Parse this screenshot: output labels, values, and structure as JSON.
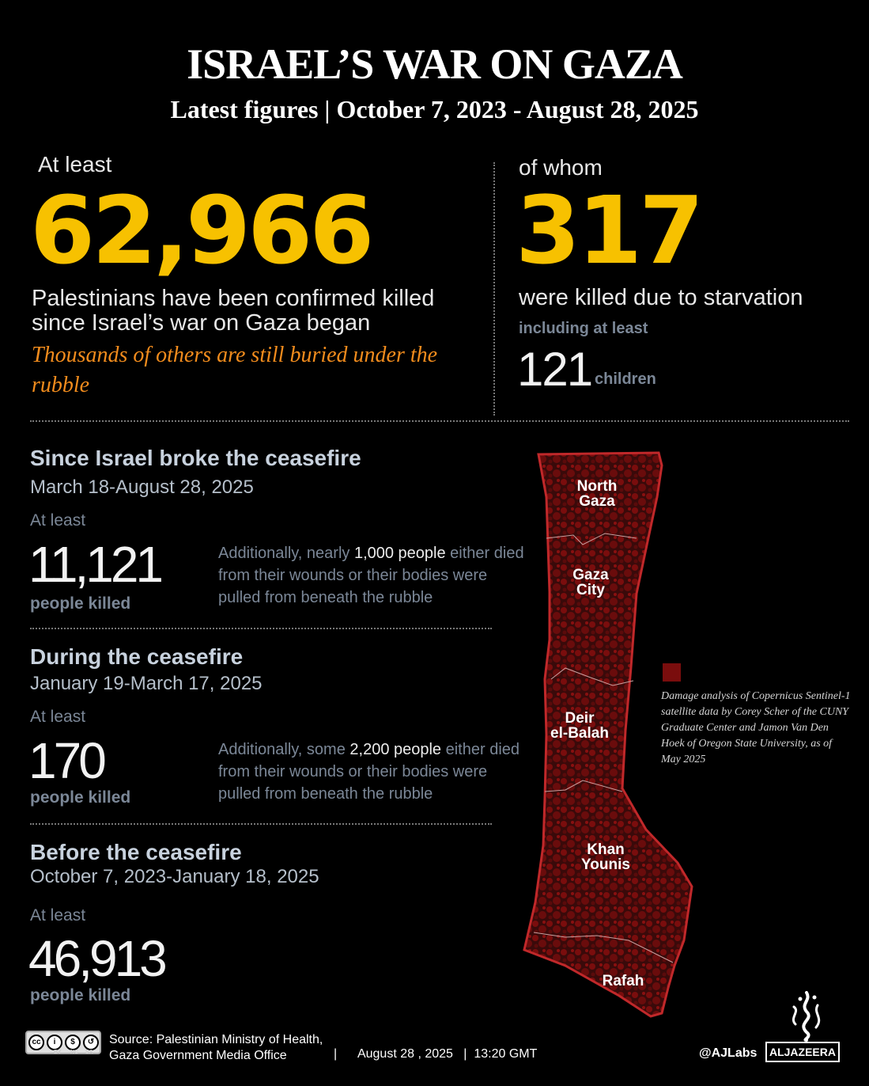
{
  "header": {
    "title": "ISRAEL’S WAR ON GAZA",
    "subtitle": "Latest figures | October 7, 2023 - August 28, 2025"
  },
  "total": {
    "prefix": "At least",
    "count": "62,966",
    "line1": "Palestinians have been confirmed killed",
    "line2": "since Israel’s war on Gaza began",
    "note": "Thousands of others are still buried under the rubble"
  },
  "starvation": {
    "prefix": "of whom",
    "count": "317",
    "text": "were killed due to starvation",
    "including": "including at least",
    "children_count": "121",
    "children_label": "children"
  },
  "sections": [
    {
      "title": "Since Israel broke the ceasefire",
      "dates": "March 18-August 28, 2025",
      "prefix": "At least",
      "count": "11,121",
      "unit": "people killed",
      "note_pre": "Additionally, nearly ",
      "note_highlight": "1,000 people",
      "note_post": " either died from their wounds or their bodies were pulled from beneath the rubble"
    },
    {
      "title": "During the ceasefire",
      "dates": "January 19-March 17, 2025",
      "prefix": "At least",
      "count": "170",
      "unit": "people killed",
      "note_pre": "Additionally, some ",
      "note_highlight": "2,200 people",
      "note_post": " either died from their wounds or their bodies were pulled from beneath the rubble"
    },
    {
      "title": "Before the ceasefire",
      "dates": "October 7, 2023-January 18, 2025",
      "prefix": "At least",
      "count": "46,913",
      "unit": "people killed"
    }
  ],
  "map": {
    "regions": [
      {
        "line1": "North",
        "line2": "Gaza"
      },
      {
        "line1": "Gaza",
        "line2": "City"
      },
      {
        "line1": "Deir",
        "line2": "el-Balah"
      },
      {
        "line1": "Khan",
        "line2": "Younis"
      },
      {
        "line1": "Rafah",
        "line2": ""
      }
    ],
    "legend": "Damage analysis of Copernicus Sentinel-1 satellite data by Corey Scher of the CUNY Graduate Center and Jamon Van Den Hoek of Oregon State University, as of May 2025",
    "damage_color": "#7a0d0d",
    "land_color": "#3a0a0a",
    "border_color": "#c0282a"
  },
  "footer": {
    "license_icons": [
      "cc-icon",
      "by-icon",
      "nc-icon",
      "sa-icon"
    ],
    "license_labels": [
      "BY",
      "NC",
      "SA"
    ],
    "source_line1": "Source:  Palestinian Ministry of Health,",
    "source_line2": "Gaza Government Media Office",
    "separator": "|",
    "date": "August 28 , 2025",
    "separator2": "|",
    "time": "13:20 GMT",
    "handle": "@AJLabs",
    "brand": "ALJAZEERA"
  },
  "colors": {
    "accent_yellow": "#f7c100",
    "accent_orange": "#f28c1d",
    "muted_label": "#7b8797",
    "heading": "#c8d2de"
  }
}
